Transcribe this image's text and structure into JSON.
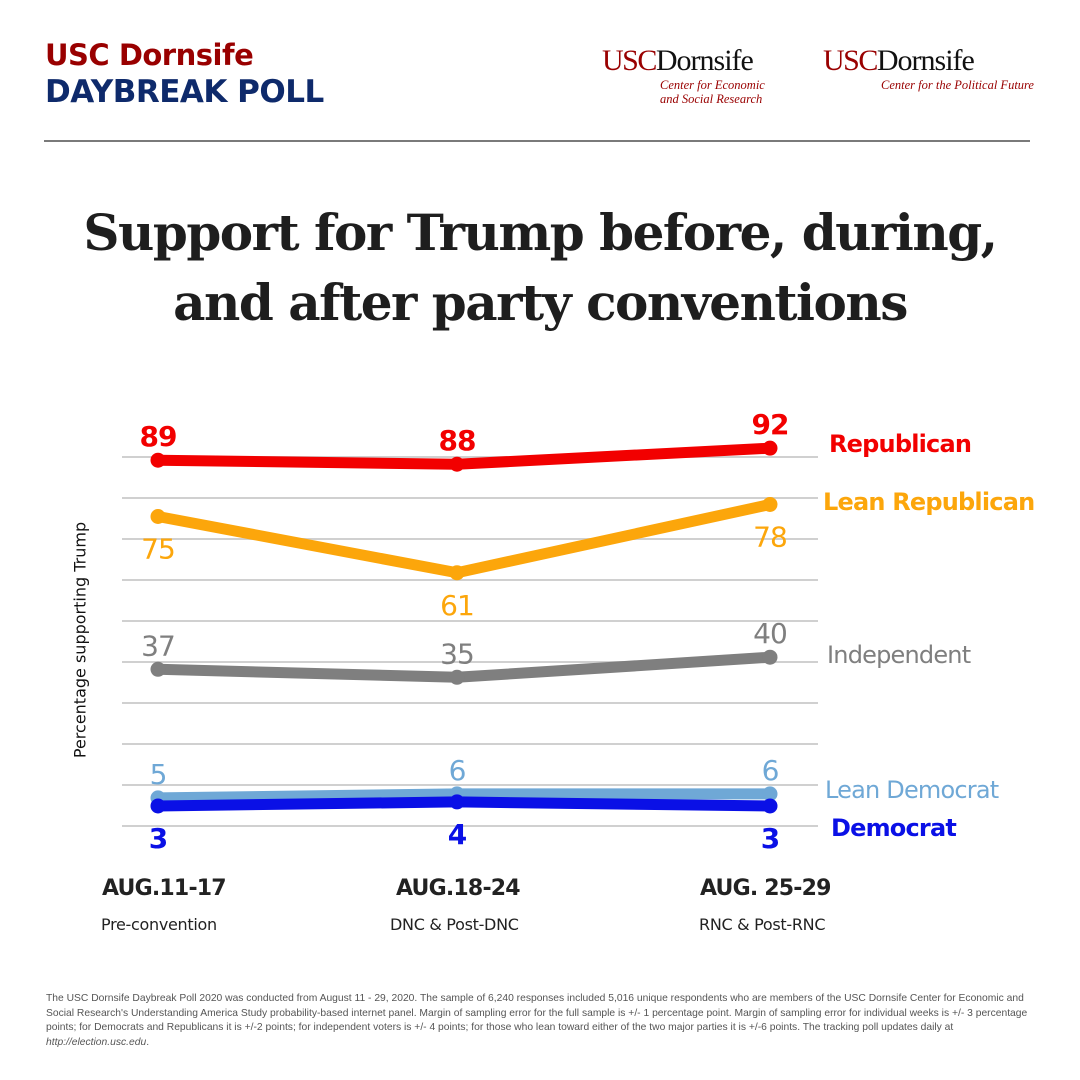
{
  "header": {
    "brand_line1": "USC Dornsife",
    "brand_line2": "DAYBREAK POLL",
    "logos": [
      {
        "usc": "USC",
        "name": "Dornsife",
        "sub_line1": "Center for Economic",
        "sub_line2": "and Social Research"
      },
      {
        "usc": "USC",
        "name": "Dornsife",
        "sub_line1": "Center for the Political Future",
        "sub_line2": ""
      }
    ]
  },
  "colors": {
    "brand_red": "#990000",
    "brand_navy": "#0e2a6b",
    "republican": "#f20000",
    "lean_republican": "#fca60b",
    "independent": "#7f7f7f",
    "lean_democrat": "#6fa8d6",
    "democrat": "#0a10e6",
    "gridline": "#d0d0d0"
  },
  "chart_data": {
    "type": "line",
    "title": "Support for Trump before, during, and after party conventions",
    "title_line1": "Support for Trump before, during,",
    "title_line2": "and after party conventions",
    "xlabel": "",
    "ylabel": "Percentage supporting Trump",
    "ylim": [
      0,
      100
    ],
    "grid": true,
    "legend": "right, inline at series end",
    "categories": [
      "AUG.11-17",
      "AUG.18-24",
      "AUG. 25-29"
    ],
    "category_sublabels": [
      "Pre-convention",
      "DNC & Post-DNC",
      "RNC & Post-RNC"
    ],
    "series": [
      {
        "name": "Republican",
        "key": "republican",
        "values": [
          89,
          88,
          92
        ],
        "label_pos": [
          "above",
          "above",
          "above"
        ]
      },
      {
        "name": "Lean Republican",
        "key": "lean_republican",
        "values": [
          75,
          61,
          78
        ],
        "label_pos": [
          "below",
          "below",
          "below"
        ]
      },
      {
        "name": "Independent",
        "key": "independent",
        "values": [
          37,
          35,
          40
        ],
        "label_pos": [
          "above",
          "above",
          "above"
        ]
      },
      {
        "name": "Lean Democrat",
        "key": "lean_democrat",
        "values": [
          5,
          6,
          6
        ],
        "label_pos": [
          "above",
          "above",
          "above"
        ]
      },
      {
        "name": "Democrat",
        "key": "democrat",
        "values": [
          3,
          4,
          3
        ],
        "label_pos": [
          "below",
          "below",
          "below"
        ]
      }
    ]
  },
  "footnote": {
    "text": "The USC Dornsife Daybreak Poll 2020 was conducted from August 11 - 29, 2020. The sample of 6,240 responses included  5,016 unique respondents who are members of the USC Dornsife Center for Economic and Social Research's Understanding America Study probability-based internet panel. Margin of sampling error for the full sample is +/- 1 percentage point. Margin of sampling error for individual weeks is +/- 3 percentage points; for Democrats and Republicans it is +/-2 points; for independent voters is +/- 4 points; for those who lean toward either of the two major parties it is +/-6 points. The tracking poll updates daily at ",
    "link": "http://election.usc.edu",
    "end": "."
  }
}
